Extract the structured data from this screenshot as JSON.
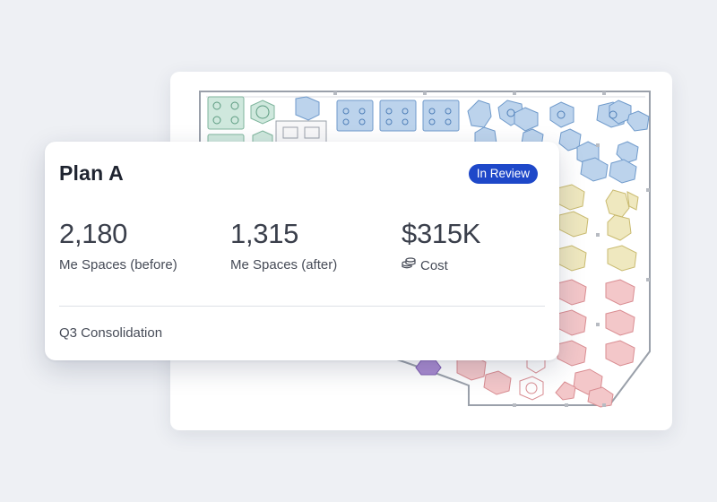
{
  "floor_plan": {
    "label": "office-floor-plan",
    "zone_colors": {
      "green": "#cfe8dd",
      "blue": "#bcd3ec",
      "yellow": "#efe8bf",
      "red": "#f3c7c9",
      "purple": "#a98bd1"
    }
  },
  "plan": {
    "title": "Plan A",
    "status": "In Review",
    "status_color": "#1e48c9",
    "metrics": [
      {
        "value": "2,180",
        "label": "Me Spaces (before)"
      },
      {
        "value": "1,315",
        "label": "Me Spaces (after)"
      },
      {
        "value": "$315K",
        "label": "Cost",
        "icon": "coins-icon"
      }
    ],
    "footer": "Q3 Consolidation"
  }
}
